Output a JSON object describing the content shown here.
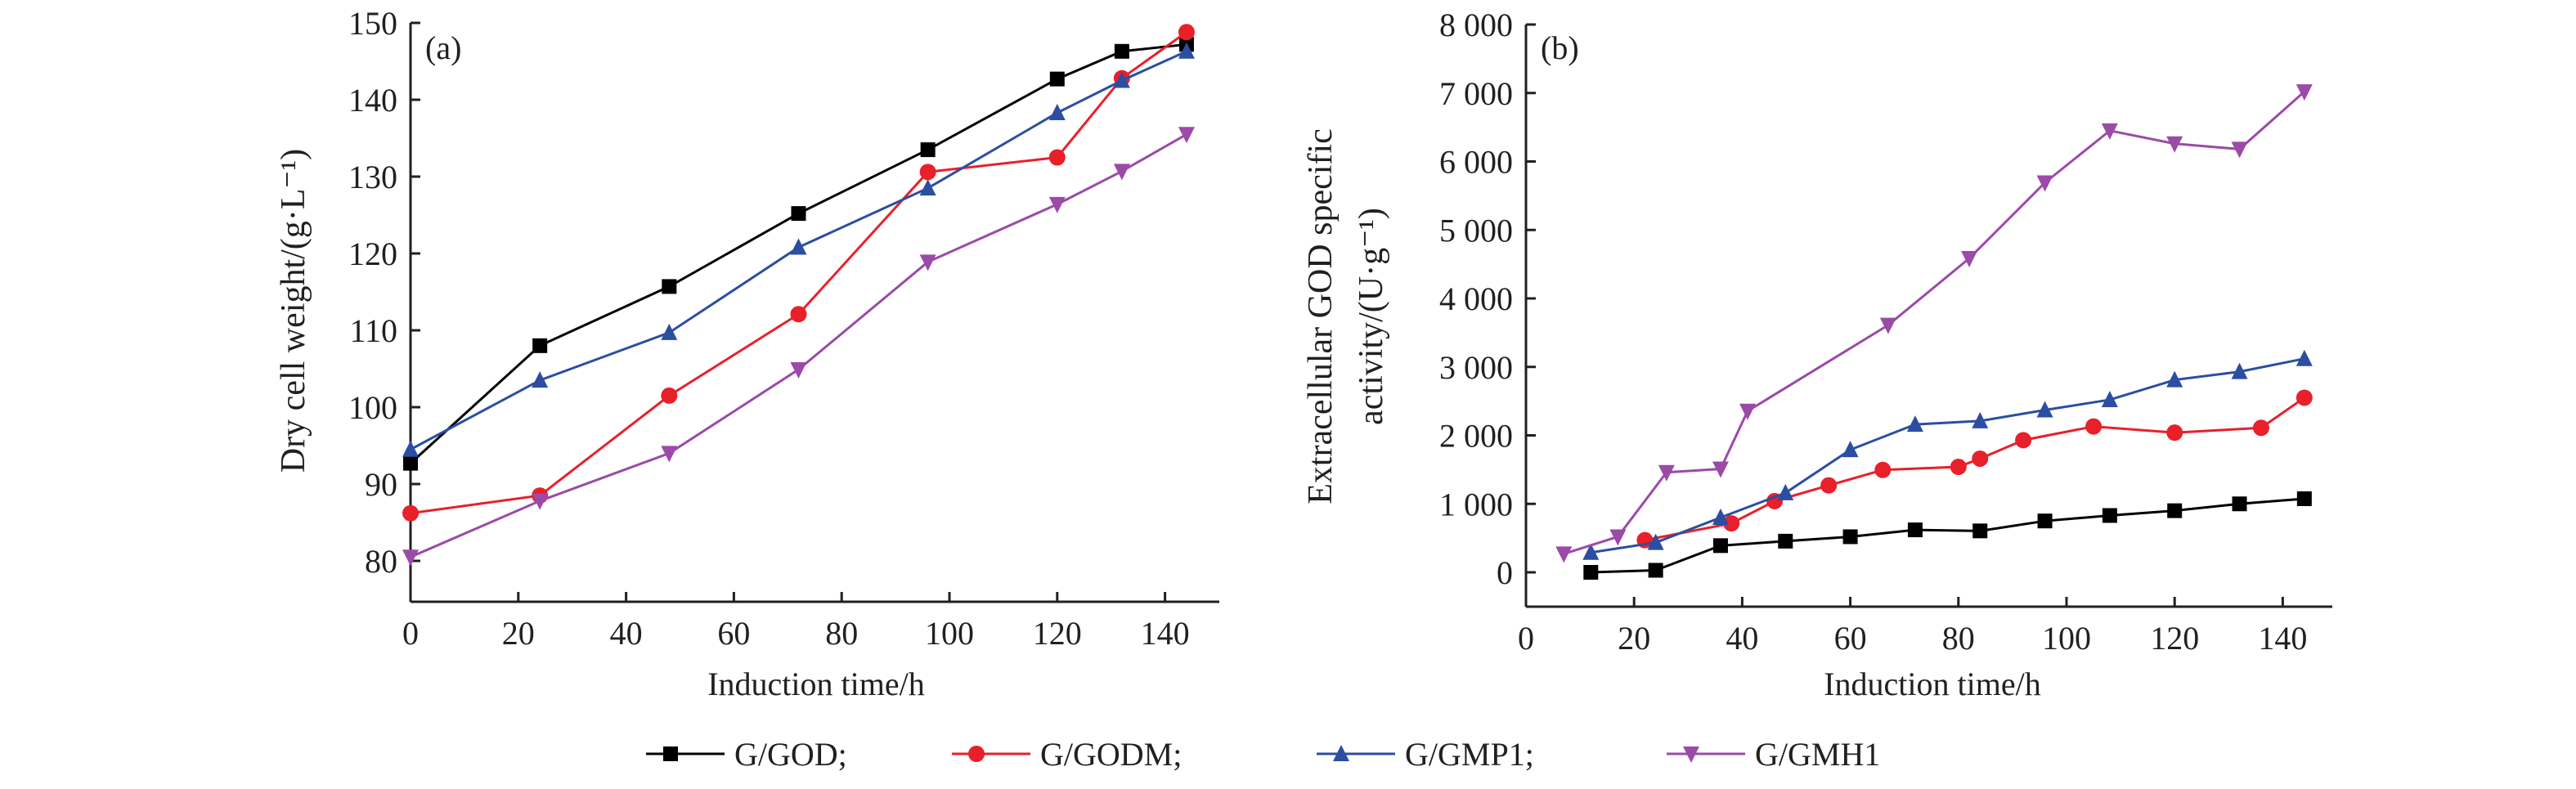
{
  "colors": {
    "G/GOD": "#000000",
    "G/GODM": "#e8202a",
    "G/GMP1": "#2b4ea2",
    "G/GMH1": "#9b4aa8"
  },
  "legend": [
    {
      "label": "G/GOD;",
      "marker": "square",
      "color": "#000000"
    },
    {
      "label": "G/GODM;",
      "marker": "circle",
      "color": "#e8202a"
    },
    {
      "label": "G/GMP1;",
      "marker": "triangle-up",
      "color": "#2b4ea2"
    },
    {
      "label": "G/GMH1",
      "marker": "triangle-down",
      "color": "#9b4aa8"
    }
  ],
  "chart_data": [
    {
      "type": "line",
      "panel_label": "(a)",
      "xlabel": "Induction time/h",
      "ylabel": "Dry cell weight/(g·L⁻¹)",
      "xlim": [
        0,
        150
      ],
      "ylim": [
        74.7,
        150
      ],
      "xticks": [
        "0",
        "20",
        "40",
        "60",
        "80",
        "100",
        "120",
        "140"
      ],
      "yticks": [
        "80",
        "90",
        "100",
        "110",
        "120",
        "130",
        "140",
        "150"
      ],
      "series": [
        {
          "name": "G/GOD",
          "x": [
            0,
            24,
            48,
            72,
            96,
            120,
            132,
            144
          ],
          "y": [
            92.7,
            108,
            115.7,
            125.2,
            133.5,
            142.7,
            146.3,
            147.2
          ]
        },
        {
          "name": "G/GODM",
          "x": [
            0,
            24,
            48,
            72,
            96,
            120,
            132,
            144
          ],
          "y": [
            86.2,
            88.5,
            101.5,
            112.1,
            130.6,
            132.5,
            142.8,
            148.8
          ]
        },
        {
          "name": "G/GMP1",
          "x": [
            0,
            24,
            48,
            72,
            96,
            120,
            132,
            144
          ],
          "y": [
            94.5,
            103.5,
            109.7,
            120.8,
            128.5,
            138.3,
            142.5,
            146.3
          ]
        },
        {
          "name": "G/GMH1",
          "x": [
            0,
            24,
            48,
            72,
            96,
            120,
            132,
            144
          ],
          "y": [
            80.5,
            87.8,
            94,
            104.9,
            118.9,
            126.4,
            130.7,
            135.5
          ]
        }
      ]
    },
    {
      "type": "line",
      "panel_label": "(b)",
      "xlabel": "Induction time/h",
      "ylabel_line1": "Extracellular GOD specific",
      "ylabel_line2": "activity/(U·g⁻¹)",
      "xlim": [
        0,
        150
      ],
      "ylim": [
        -500,
        8000
      ],
      "xticks": [
        "0",
        "20",
        "40",
        "60",
        "80",
        "100",
        "120",
        "140"
      ],
      "yticks": [
        "0",
        "1 000",
        "2 000",
        "3 000",
        "4 000",
        "5 000",
        "6 000",
        "7 000",
        "8 000"
      ],
      "series": [
        {
          "name": "G/GOD",
          "x": [
            12,
            24,
            36,
            48,
            60,
            72,
            84,
            96,
            108,
            120,
            132,
            144
          ],
          "y": [
            0,
            30,
            390,
            455,
            520,
            620,
            605,
            750,
            830,
            900,
            1000,
            1075
          ]
        },
        {
          "name": "G/GODM",
          "x": [
            22,
            38,
            46,
            56,
            66,
            80,
            84,
            92,
            105,
            120,
            136,
            144
          ],
          "y": [
            470,
            715,
            1040,
            1270,
            1495,
            1540,
            1660,
            1930,
            2130,
            2040,
            2110,
            2550
          ]
        },
        {
          "name": "G/GMP1",
          "x": [
            12,
            24,
            36,
            48,
            60,
            72,
            84,
            96,
            108,
            120,
            132,
            144
          ],
          "y": [
            290,
            435,
            800,
            1160,
            1790,
            2160,
            2210,
            2370,
            2520,
            2810,
            2930,
            3120
          ]
        },
        {
          "name": "G/GMH1",
          "x": [
            7,
            17,
            26,
            36,
            41,
            67,
            82,
            96,
            108,
            120,
            132,
            144
          ],
          "y": [
            270,
            520,
            1460,
            1510,
            2355,
            3610,
            4585,
            5690,
            6450,
            6260,
            6180,
            7020
          ]
        }
      ]
    }
  ]
}
